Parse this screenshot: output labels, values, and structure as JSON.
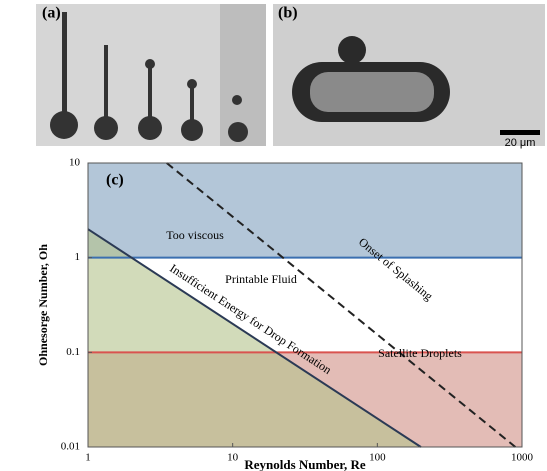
{
  "panels": {
    "a": "(a)",
    "b": "(b)",
    "scale_bar": "20 μm"
  },
  "chart_data": {
    "type": "region",
    "title": "(c)",
    "xlabel": "Reynolds Number, Re",
    "ylabel": "Ohnesorge Number, Oh",
    "xlog": true,
    "ylog": true,
    "xlim": [
      1,
      1000
    ],
    "ylim": [
      0.01,
      10
    ],
    "xticks": [
      1,
      10,
      100,
      1000
    ],
    "yticks": [
      0.01,
      0.1,
      1,
      10
    ],
    "annotation": "Printable Fluid",
    "series": [
      {
        "name": "Satellite Droplets",
        "color": "#d9534f",
        "fill": "#e3bcb6",
        "fill_side": "below",
        "x": [
          1,
          1000
        ],
        "values": [
          0.1,
          0.1
        ]
      },
      {
        "name": "Too viscous",
        "color": "#3b6fb0",
        "fill": "#b3c6d8",
        "fill_side": "above",
        "x": [
          1,
          1000
        ],
        "values": [
          1,
          1
        ]
      },
      {
        "name": "Insufficient Energy for Drop Formation",
        "color": "#2b3a55",
        "fill": "rgba(180,195,140,0.6)",
        "fill_side": "below",
        "x": [
          1,
          200
        ],
        "values": [
          2,
          0.01
        ]
      },
      {
        "name": "Onset of Splashing",
        "color": "#222",
        "dash": true,
        "x": [
          3.5,
          900
        ],
        "values": [
          10,
          0.01
        ]
      }
    ]
  }
}
